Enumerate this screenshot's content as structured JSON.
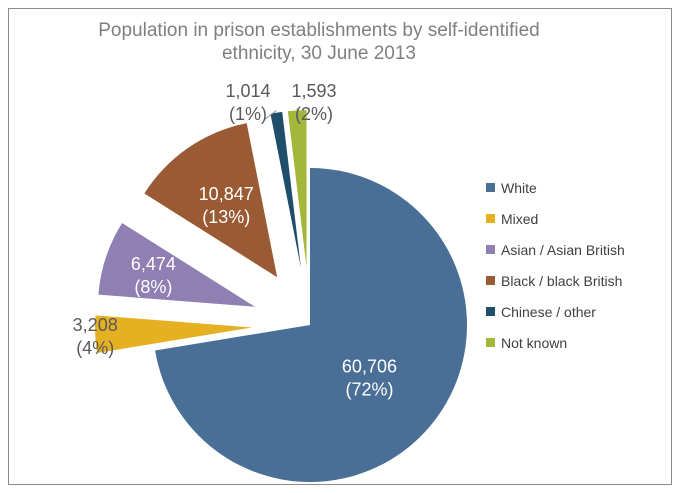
{
  "chart_data": {
    "type": "pie",
    "title": "Population in prison establishments by self-identified ethnicity, 30 June 2013",
    "title_lines": [
      "Population in prison establishments by self-identified",
      "ethnicity, 30 June 2013"
    ],
    "categories": [
      "White",
      "Mixed",
      "Asian / Asian British",
      "Black / black British",
      "Chinese / other",
      "Not known"
    ],
    "values": [
      60706,
      3208,
      6474,
      10847,
      1014,
      1593
    ],
    "value_labels": [
      "60,706",
      "3,208",
      "6,474",
      "10,847",
      "1,014",
      "1,593"
    ],
    "percent_labels": [
      "(72%)",
      "(4%)",
      "(8%)",
      "(13%)",
      "(1%)",
      "(2%)"
    ],
    "colors": [
      "#4a6f96",
      "#e6b023",
      "#8f7fb2",
      "#9a5a33",
      "#1f4e6b",
      "#a3b83a"
    ],
    "exploded": true,
    "legend_position": "right"
  }
}
